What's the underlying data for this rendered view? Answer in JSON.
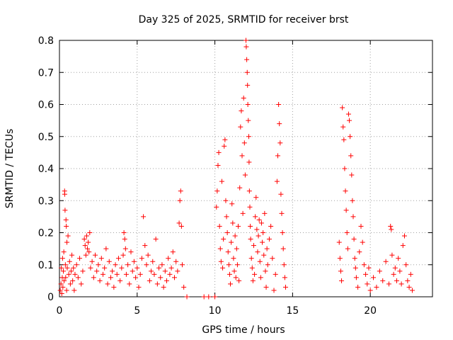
{
  "chart_data": {
    "type": "scatter",
    "title": "Day 325 of 2025, SRMTID for receiver brst",
    "xlabel": "GPS time / hours",
    "ylabel": "SRMTID / TECUs",
    "xlim": [
      0,
      24
    ],
    "ylim": [
      0,
      0.8
    ],
    "xticks": [
      0,
      5,
      10,
      15,
      20
    ],
    "xtick_labels": [
      "0",
      "5",
      "10",
      "15",
      "20"
    ],
    "yticks": [
      0,
      0.1,
      0.2,
      0.3,
      0.4,
      0.5,
      0.6,
      0.7,
      0.8
    ],
    "ytick_labels": [
      "0",
      "0.1",
      "0.2",
      "0.3",
      "0.4",
      "0.5",
      "0.6",
      "0.7",
      "0.8"
    ],
    "grid": true,
    "marker": "+",
    "color": "#ff0000",
    "series": [
      {
        "name": "SRMTID",
        "points": [
          [
            0.05,
            0.02
          ],
          [
            0.1,
            0.04
          ],
          [
            0.12,
            0.09
          ],
          [
            0.15,
            0.01
          ],
          [
            0.18,
            0.06
          ],
          [
            0.2,
            0.12
          ],
          [
            0.22,
            0.03
          ],
          [
            0.25,
            0.08
          ],
          [
            0.28,
            0.14
          ],
          [
            0.3,
            0.05
          ],
          [
            0.33,
            0.33
          ],
          [
            0.34,
            0.32
          ],
          [
            0.36,
            0.27
          ],
          [
            0.38,
            0.1
          ],
          [
            0.4,
            0.06
          ],
          [
            0.42,
            0.24
          ],
          [
            0.44,
            0.22
          ],
          [
            0.46,
            0.02
          ],
          [
            0.48,
            0.17
          ],
          [
            0.5,
            0.09
          ],
          [
            0.55,
            0.19
          ],
          [
            0.6,
            0.07
          ],
          [
            0.65,
            0.11
          ],
          [
            0.7,
            0.04
          ],
          [
            0.75,
            0.08
          ],
          [
            0.8,
            0.13
          ],
          [
            0.85,
            0.05
          ],
          [
            0.9,
            0.09
          ],
          [
            0.95,
            0.02
          ],
          [
            1.0,
            0.07
          ],
          [
            1.1,
            0.1
          ],
          [
            1.2,
            0.06
          ],
          [
            1.3,
            0.12
          ],
          [
            1.4,
            0.04
          ],
          [
            1.5,
            0.08
          ],
          [
            1.6,
            0.18
          ],
          [
            1.65,
            0.16
          ],
          [
            1.7,
            0.13
          ],
          [
            1.75,
            0.19
          ],
          [
            1.8,
            0.15
          ],
          [
            1.85,
            0.17
          ],
          [
            1.9,
            0.14
          ],
          [
            1.95,
            0.2
          ],
          [
            2.0,
            0.09
          ],
          [
            2.1,
            0.11
          ],
          [
            2.2,
            0.06
          ],
          [
            2.3,
            0.13
          ],
          [
            2.4,
            0.08
          ],
          [
            2.5,
            0.1
          ],
          [
            2.6,
            0.05
          ],
          [
            2.7,
            0.12
          ],
          [
            2.8,
            0.07
          ],
          [
            2.9,
            0.09
          ],
          [
            3.0,
            0.15
          ],
          [
            3.1,
            0.04
          ],
          [
            3.2,
            0.11
          ],
          [
            3.3,
            0.06
          ],
          [
            3.4,
            0.08
          ],
          [
            3.5,
            0.03
          ],
          [
            3.6,
            0.1
          ],
          [
            3.7,
            0.07
          ],
          [
            3.8,
            0.12
          ],
          [
            3.9,
            0.05
          ],
          [
            4.0,
            0.09
          ],
          [
            4.1,
            0.13
          ],
          [
            4.15,
            0.2
          ],
          [
            4.2,
            0.18
          ],
          [
            4.25,
            0.15
          ],
          [
            4.3,
            0.07
          ],
          [
            4.4,
            0.1
          ],
          [
            4.5,
            0.04
          ],
          [
            4.6,
            0.14
          ],
          [
            4.7,
            0.08
          ],
          [
            4.8,
            0.11
          ],
          [
            4.9,
            0.06
          ],
          [
            5.0,
            0.09
          ],
          [
            5.1,
            0.03
          ],
          [
            5.2,
            0.07
          ],
          [
            5.3,
            0.12
          ],
          [
            5.4,
            0.25
          ],
          [
            5.5,
            0.16
          ],
          [
            5.6,
            0.1
          ],
          [
            5.7,
            0.13
          ],
          [
            5.8,
            0.05
          ],
          [
            5.9,
            0.08
          ],
          [
            6.0,
            0.11
          ],
          [
            6.1,
            0.07
          ],
          [
            6.2,
            0.18
          ],
          [
            6.3,
            0.04
          ],
          [
            6.4,
            0.09
          ],
          [
            6.5,
            0.06
          ],
          [
            6.6,
            0.1
          ],
          [
            6.7,
            0.03
          ],
          [
            6.8,
            0.08
          ],
          [
            6.9,
            0.05
          ],
          [
            7.0,
            0.12
          ],
          [
            7.1,
            0.07
          ],
          [
            7.2,
            0.09
          ],
          [
            7.3,
            0.14
          ],
          [
            7.4,
            0.06
          ],
          [
            7.5,
            0.11
          ],
          [
            7.6,
            0.08
          ],
          [
            7.7,
            0.23
          ],
          [
            7.75,
            0.3
          ],
          [
            7.8,
            0.33
          ],
          [
            7.85,
            0.22
          ],
          [
            7.9,
            0.1
          ],
          [
            8.0,
            0.03
          ],
          [
            8.2,
            0.0
          ],
          [
            9.3,
            0.0
          ],
          [
            9.6,
            0.0
          ],
          [
            10.0,
            0.0
          ],
          [
            10.1,
            0.28
          ],
          [
            10.15,
            0.33
          ],
          [
            10.2,
            0.41
          ],
          [
            10.25,
            0.45
          ],
          [
            10.3,
            0.22
          ],
          [
            10.35,
            0.15
          ],
          [
            10.4,
            0.11
          ],
          [
            10.45,
            0.36
          ],
          [
            10.5,
            0.09
          ],
          [
            10.55,
            0.18
          ],
          [
            10.6,
            0.47
          ],
          [
            10.65,
            0.49
          ],
          [
            10.7,
            0.3
          ],
          [
            10.75,
            0.25
          ],
          [
            10.8,
            0.2
          ],
          [
            10.85,
            0.14
          ],
          [
            10.9,
            0.1
          ],
          [
            10.95,
            0.07
          ],
          [
            11.0,
            0.04
          ],
          [
            11.05,
            0.17
          ],
          [
            11.1,
            0.29
          ],
          [
            11.15,
            0.23
          ],
          [
            11.2,
            0.12
          ],
          [
            11.25,
            0.08
          ],
          [
            11.3,
            0.19
          ],
          [
            11.35,
            0.06
          ],
          [
            11.4,
            0.15
          ],
          [
            11.45,
            0.1
          ],
          [
            11.5,
            0.22
          ],
          [
            11.55,
            0.05
          ],
          [
            11.6,
            0.34
          ],
          [
            11.65,
            0.53
          ],
          [
            11.7,
            0.58
          ],
          [
            11.75,
            0.44
          ],
          [
            11.8,
            0.26
          ],
          [
            11.85,
            0.62
          ],
          [
            11.9,
            0.48
          ],
          [
            11.95,
            0.38
          ],
          [
            12.0,
            0.8
          ],
          [
            12.02,
            0.78
          ],
          [
            12.05,
            0.74
          ],
          [
            12.08,
            0.7
          ],
          [
            12.1,
            0.66
          ],
          [
            12.12,
            0.6
          ],
          [
            12.15,
            0.55
          ],
          [
            12.18,
            0.5
          ],
          [
            12.2,
            0.42
          ],
          [
            12.22,
            0.33
          ],
          [
            12.25,
            0.28
          ],
          [
            12.28,
            0.22
          ],
          [
            12.3,
            0.18
          ],
          [
            12.35,
            0.12
          ],
          [
            12.4,
            0.09
          ],
          [
            12.45,
            0.05
          ],
          [
            12.5,
            0.16
          ],
          [
            12.55,
            0.07
          ],
          [
            12.6,
            0.25
          ],
          [
            12.65,
            0.31
          ],
          [
            12.7,
            0.21
          ],
          [
            12.75,
            0.14
          ],
          [
            12.8,
            0.19
          ],
          [
            12.85,
            0.24
          ],
          [
            12.9,
            0.11
          ],
          [
            12.95,
            0.06
          ],
          [
            13.0,
            0.23
          ],
          [
            13.05,
            0.17
          ],
          [
            13.1,
            0.2
          ],
          [
            13.15,
            0.13
          ],
          [
            13.2,
            0.26
          ],
          [
            13.25,
            0.08
          ],
          [
            13.3,
            0.03
          ],
          [
            13.35,
            0.15
          ],
          [
            13.4,
            0.1
          ],
          [
            13.5,
            0.18
          ],
          [
            13.6,
            0.22
          ],
          [
            13.7,
            0.12
          ],
          [
            13.8,
            0.02
          ],
          [
            13.9,
            0.07
          ],
          [
            14.0,
            0.36
          ],
          [
            14.05,
            0.44
          ],
          [
            14.1,
            0.6
          ],
          [
            14.15,
            0.54
          ],
          [
            14.2,
            0.48
          ],
          [
            14.25,
            0.32
          ],
          [
            14.3,
            0.26
          ],
          [
            14.35,
            0.2
          ],
          [
            14.4,
            0.15
          ],
          [
            14.45,
            0.1
          ],
          [
            14.5,
            0.06
          ],
          [
            14.55,
            0.03
          ],
          [
            18.0,
            0.17
          ],
          [
            18.05,
            0.12
          ],
          [
            18.1,
            0.08
          ],
          [
            18.15,
            0.05
          ],
          [
            18.2,
            0.59
          ],
          [
            18.25,
            0.53
          ],
          [
            18.3,
            0.49
          ],
          [
            18.35,
            0.4
          ],
          [
            18.4,
            0.33
          ],
          [
            18.45,
            0.27
          ],
          [
            18.5,
            0.2
          ],
          [
            18.55,
            0.15
          ],
          [
            18.6,
            0.57
          ],
          [
            18.65,
            0.55
          ],
          [
            18.7,
            0.5
          ],
          [
            18.75,
            0.44
          ],
          [
            18.8,
            0.38
          ],
          [
            18.85,
            0.3
          ],
          [
            18.9,
            0.25
          ],
          [
            18.95,
            0.18
          ],
          [
            19.0,
            0.12
          ],
          [
            19.05,
            0.09
          ],
          [
            19.1,
            0.06
          ],
          [
            19.2,
            0.03
          ],
          [
            19.3,
            0.14
          ],
          [
            19.4,
            0.22
          ],
          [
            19.5,
            0.17
          ],
          [
            19.6,
            0.1
          ],
          [
            19.7,
            0.07
          ],
          [
            19.8,
            0.04
          ],
          [
            19.9,
            0.09
          ],
          [
            20.0,
            0.02
          ],
          [
            20.2,
            0.06
          ],
          [
            20.4,
            0.03
          ],
          [
            20.6,
            0.08
          ],
          [
            20.8,
            0.05
          ],
          [
            21.0,
            0.11
          ],
          [
            21.2,
            0.04
          ],
          [
            21.3,
            0.22
          ],
          [
            21.35,
            0.21
          ],
          [
            21.4,
            0.13
          ],
          [
            21.5,
            0.07
          ],
          [
            21.6,
            0.09
          ],
          [
            21.7,
            0.05
          ],
          [
            21.8,
            0.12
          ],
          [
            21.9,
            0.08
          ],
          [
            22.0,
            0.04
          ],
          [
            22.1,
            0.16
          ],
          [
            22.2,
            0.19
          ],
          [
            22.3,
            0.1
          ],
          [
            22.4,
            0.05
          ],
          [
            22.5,
            0.03
          ],
          [
            22.6,
            0.07
          ],
          [
            22.7,
            0.02
          ]
        ]
      }
    ]
  }
}
